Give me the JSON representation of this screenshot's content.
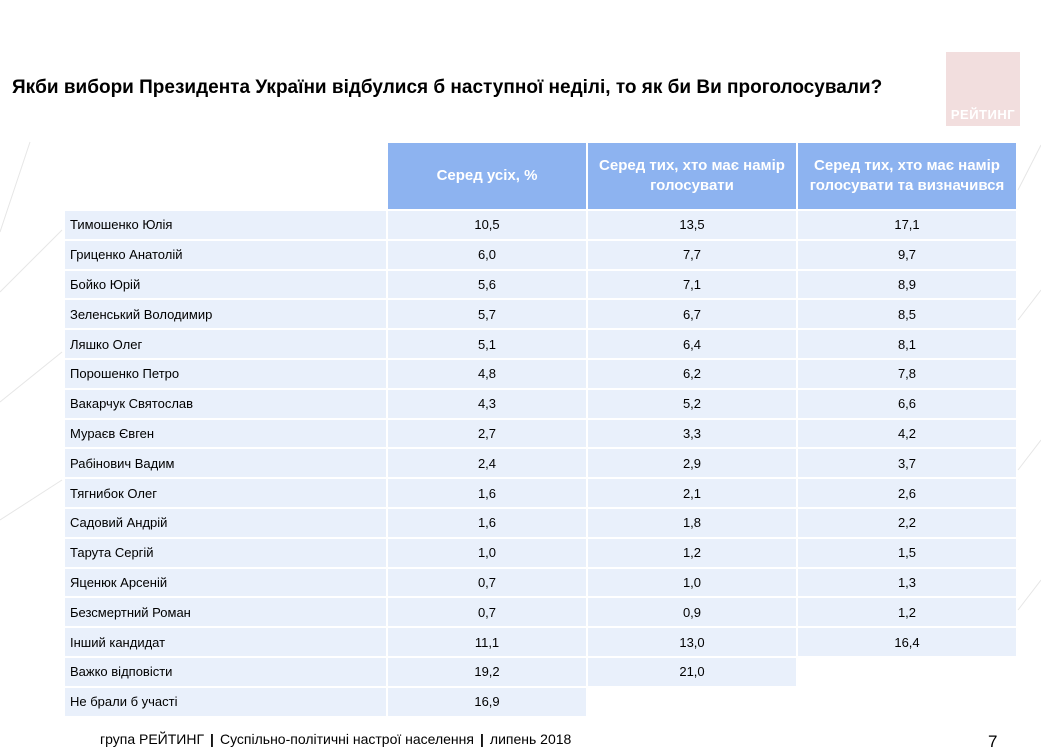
{
  "title": "Якби вибори Президента України відбулися б наступної неділі, то як би Ви проголосували?",
  "logo_text": "РЕЙТИНГ",
  "columns": [
    "Серед усіх, %",
    "Серед тих, хто має намір голосувати",
    "Серед тих, хто має намір голосувати та визначився"
  ],
  "rows": [
    {
      "name": "Тимошенко Юлія",
      "values": [
        "10,5",
        "13,5",
        "17,1"
      ]
    },
    {
      "name": "Гриценко Анатолій",
      "values": [
        "6,0",
        "7,7",
        "9,7"
      ]
    },
    {
      "name": "Бойко Юрій",
      "values": [
        "5,6",
        "7,1",
        "8,9"
      ]
    },
    {
      "name": "Зеленський Володимир",
      "values": [
        "5,7",
        "6,7",
        "8,5"
      ]
    },
    {
      "name": "Ляшко Олег",
      "values": [
        "5,1",
        "6,4",
        "8,1"
      ]
    },
    {
      "name": "Порошенко Петро",
      "values": [
        "4,8",
        "6,2",
        "7,8"
      ]
    },
    {
      "name": "Вакарчук Святослав",
      "values": [
        "4,3",
        "5,2",
        "6,6"
      ]
    },
    {
      "name": "Мураєв Євген",
      "values": [
        "2,7",
        "3,3",
        "4,2"
      ]
    },
    {
      "name": "Рабінович Вадим",
      "values": [
        "2,4",
        "2,9",
        "3,7"
      ]
    },
    {
      "name": "Тягнибок Олег",
      "values": [
        "1,6",
        "2,1",
        "2,6"
      ]
    },
    {
      "name": "Садовий Андрій",
      "values": [
        "1,6",
        "1,8",
        "2,2"
      ]
    },
    {
      "name": "Тарута Сергій",
      "values": [
        "1,0",
        "1,2",
        "1,5"
      ]
    },
    {
      "name": "Яценюк Арсеній",
      "values": [
        "0,7",
        "1,0",
        "1,3"
      ]
    },
    {
      "name": "Безсмертний Роман",
      "values": [
        "0,7",
        "0,9",
        "1,2"
      ]
    },
    {
      "name": "Інший кандидат",
      "values": [
        "11,1",
        "13,0",
        "16,4"
      ]
    },
    {
      "name": "Важко відповісти",
      "values": [
        "19,2",
        "21,0"
      ]
    },
    {
      "name": "Не брали б участі",
      "values": [
        "16,9"
      ]
    }
  ],
  "footer": {
    "org": "група РЕЙТИНГ",
    "separator": "|",
    "topic": "Суспільно-політичні настрої населення",
    "date": "липень 2018"
  },
  "page_number": "7",
  "colors": {
    "header_bg": "#8db3f0",
    "row_bg": "#e9f0fb",
    "logo_bg": "#f2dede"
  }
}
